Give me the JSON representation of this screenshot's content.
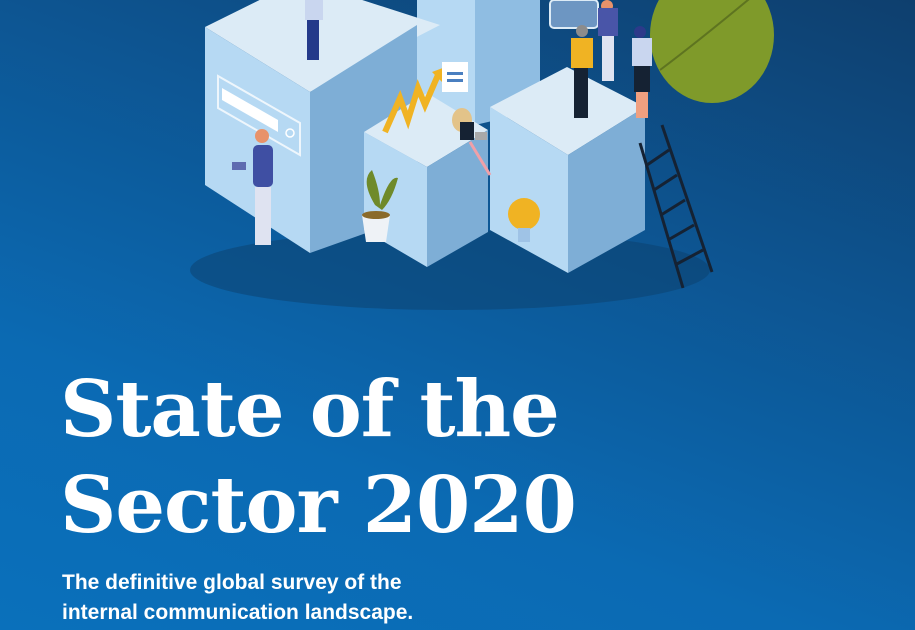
{
  "cover": {
    "title_lines": [
      "State of the",
      "Sector 2020"
    ],
    "subtitle_lines": [
      "The definitive global survey of the",
      "internal communication landscape."
    ]
  },
  "illustration": {
    "icons": [
      "search-bar-icon",
      "growth-arrow-icon",
      "chat-bubble-icon",
      "lightbulb-icon",
      "plant-icon",
      "ladder-icon",
      "leaf-icon"
    ]
  },
  "colors": {
    "background_light": "#0a70bb",
    "background_dark": "#0e3f6e",
    "cube_top": "#dcebf6",
    "cube_left": "#b6d9f3",
    "cube_right": "#7eaed6",
    "accent_yellow": "#f0b323",
    "leaf_green": "#7f9a2a"
  }
}
